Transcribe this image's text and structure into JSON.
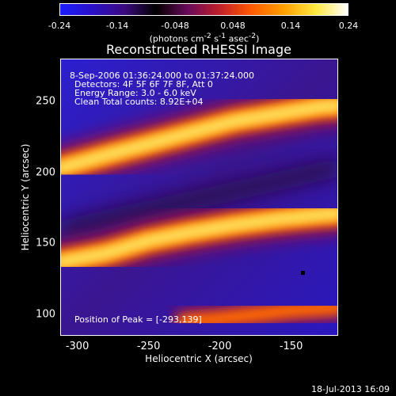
{
  "colorbar": {
    "ticks": [
      "-0.24",
      "-0.14",
      "-0.048",
      "0.048",
      "0.14",
      "0.24"
    ],
    "unit_html": "(photons cm<sup>-2</sup> s<sup>-1</sup> asec<sup>-2</sup>)",
    "colors": [
      "#1e1eff",
      "#2a10c8",
      "#3b0a80",
      "#000000",
      "#6a0a5a",
      "#c0202a",
      "#ff5a00",
      "#ffa000",
      "#ffe840",
      "#ffffff"
    ]
  },
  "title": "Reconstructed RHESSI Image",
  "annotations": {
    "time_range": "8-Sep-2006 01:36:24.000 to 01:37:24.000",
    "detectors": "Detectors: 4F 5F 6F 7F 8F, Att 0",
    "energy": "Energy Range: 3.0 - 6.0 keV",
    "clean": "Clean     Total counts: 8.92E+04",
    "peak": "Position of Peak = [-293,139]"
  },
  "axes": {
    "xlabel": "Heliocentric X (arcsec)",
    "ylabel": "Heliocentric Y (arcsec)",
    "xticks": [
      "-300",
      "-250",
      "-200",
      "-150"
    ],
    "yticks": [
      "250",
      "200",
      "150",
      "100"
    ]
  },
  "timestamp": "18-Jul-2013 16:09",
  "chart_data": {
    "type": "heatmap",
    "title": "Reconstructed RHESSI Image",
    "xlabel": "Heliocentric X (arcsec)",
    "ylabel": "Heliocentric Y (arcsec)",
    "xlim": [
      -312,
      -117
    ],
    "ylim": [
      85,
      280
    ],
    "colorbar_range": [
      -0.24,
      0.24
    ],
    "colorbar_ticks": [
      -0.24,
      -0.14,
      -0.048,
      0.048,
      0.14,
      0.24
    ],
    "peak_position": [
      -293,
      139
    ],
    "bands": [
      {
        "name": "upper",
        "x": [
          -312,
          -280,
          -250,
          -220,
          -190,
          -160,
          -130,
          -117
        ],
        "y": [
          203,
          212,
          220,
          228,
          236,
          241,
          246,
          247
        ],
        "intensity": 0.22
      },
      {
        "name": "lower",
        "x": [
          -312,
          -280,
          -250,
          -220,
          -190,
          -160,
          -130,
          -117
        ],
        "y": [
          137,
          143,
          152,
          158,
          163,
          167,
          170,
          171
        ],
        "intensity": 0.24
      },
      {
        "name": "bottom-right",
        "x": [
          -225,
          -200,
          -175,
          -150,
          -117
        ],
        "y": [
          95,
          97,
          100,
          103,
          105
        ],
        "intensity": 0.12
      }
    ]
  }
}
